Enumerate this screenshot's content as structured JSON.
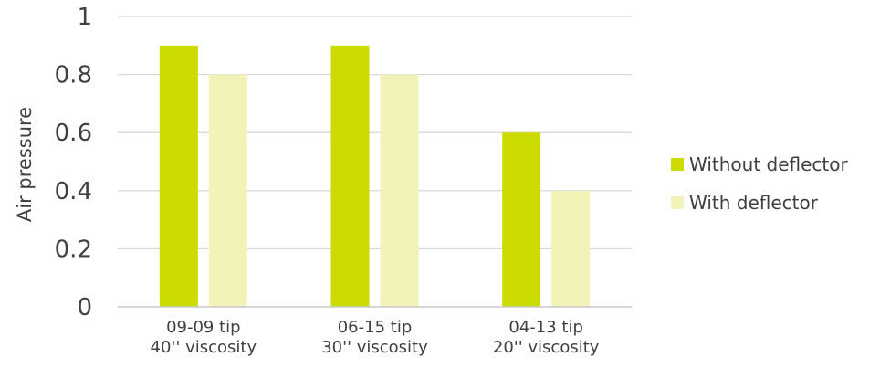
{
  "chart_data": {
    "type": "bar",
    "categories": [
      [
        "09-09 tip",
        "40'' viscosity"
      ],
      [
        "06-15 tip",
        "30'' viscosity"
      ],
      [
        "04-13 tip",
        "20'' viscosity"
      ]
    ],
    "series": [
      {
        "name": "Without deflector",
        "color": "#cddc00",
        "values": [
          0.9,
          0.9,
          0.6
        ]
      },
      {
        "name": "With deflector",
        "color": "#f1f3b8",
        "values": [
          0.8,
          0.8,
          0.4
        ]
      }
    ],
    "yticks": [
      "0",
      "0.2",
      "0.4",
      "0.6",
      "0.8",
      "1"
    ],
    "ylim": [
      0,
      1
    ],
    "ylabel": "Air pressure",
    "xlabel": "",
    "grid": true,
    "legend_position": "right"
  }
}
